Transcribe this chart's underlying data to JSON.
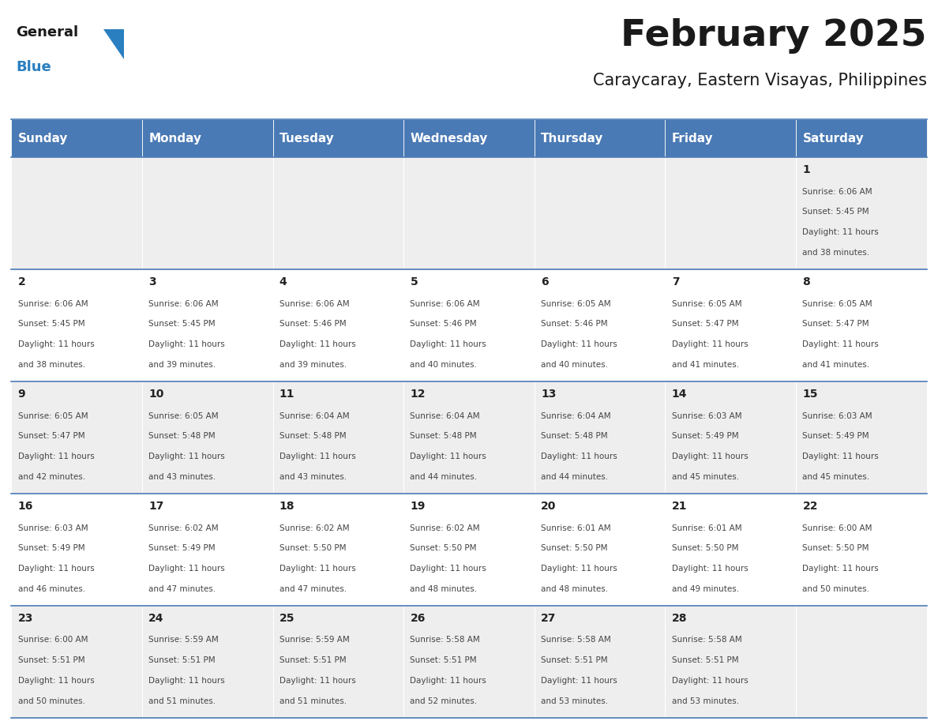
{
  "title": "February 2025",
  "subtitle": "Caraycaray, Eastern Visayas, Philippines",
  "header_bg": "#4a7ab5",
  "header_text": "#ffffff",
  "day_headers": [
    "Sunday",
    "Monday",
    "Tuesday",
    "Wednesday",
    "Thursday",
    "Friday",
    "Saturday"
  ],
  "title_color": "#1a1a1a",
  "subtitle_color": "#1a1a1a",
  "cell_text_color": "#444444",
  "day_num_color": "#222222",
  "border_color": "#4a7ab5",
  "logo_general_color": "#1a1a1a",
  "logo_blue_color": "#2a7fc0",
  "logo_triangle_color": "#2a7fc0",
  "days": [
    {
      "day": 1,
      "col": 6,
      "row": 0,
      "sunrise": "6:06 AM",
      "sunset": "5:45 PM",
      "daylight_h": "11",
      "daylight_m": "38"
    },
    {
      "day": 2,
      "col": 0,
      "row": 1,
      "sunrise": "6:06 AM",
      "sunset": "5:45 PM",
      "daylight_h": "11",
      "daylight_m": "38"
    },
    {
      "day": 3,
      "col": 1,
      "row": 1,
      "sunrise": "6:06 AM",
      "sunset": "5:45 PM",
      "daylight_h": "11",
      "daylight_m": "39"
    },
    {
      "day": 4,
      "col": 2,
      "row": 1,
      "sunrise": "6:06 AM",
      "sunset": "5:46 PM",
      "daylight_h": "11",
      "daylight_m": "39"
    },
    {
      "day": 5,
      "col": 3,
      "row": 1,
      "sunrise": "6:06 AM",
      "sunset": "5:46 PM",
      "daylight_h": "11",
      "daylight_m": "40"
    },
    {
      "day": 6,
      "col": 4,
      "row": 1,
      "sunrise": "6:05 AM",
      "sunset": "5:46 PM",
      "daylight_h": "11",
      "daylight_m": "40"
    },
    {
      "day": 7,
      "col": 5,
      "row": 1,
      "sunrise": "6:05 AM",
      "sunset": "5:47 PM",
      "daylight_h": "11",
      "daylight_m": "41"
    },
    {
      "day": 8,
      "col": 6,
      "row": 1,
      "sunrise": "6:05 AM",
      "sunset": "5:47 PM",
      "daylight_h": "11",
      "daylight_m": "41"
    },
    {
      "day": 9,
      "col": 0,
      "row": 2,
      "sunrise": "6:05 AM",
      "sunset": "5:47 PM",
      "daylight_h": "11",
      "daylight_m": "42"
    },
    {
      "day": 10,
      "col": 1,
      "row": 2,
      "sunrise": "6:05 AM",
      "sunset": "5:48 PM",
      "daylight_h": "11",
      "daylight_m": "43"
    },
    {
      "day": 11,
      "col": 2,
      "row": 2,
      "sunrise": "6:04 AM",
      "sunset": "5:48 PM",
      "daylight_h": "11",
      "daylight_m": "43"
    },
    {
      "day": 12,
      "col": 3,
      "row": 2,
      "sunrise": "6:04 AM",
      "sunset": "5:48 PM",
      "daylight_h": "11",
      "daylight_m": "44"
    },
    {
      "day": 13,
      "col": 4,
      "row": 2,
      "sunrise": "6:04 AM",
      "sunset": "5:48 PM",
      "daylight_h": "11",
      "daylight_m": "44"
    },
    {
      "day": 14,
      "col": 5,
      "row": 2,
      "sunrise": "6:03 AM",
      "sunset": "5:49 PM",
      "daylight_h": "11",
      "daylight_m": "45"
    },
    {
      "day": 15,
      "col": 6,
      "row": 2,
      "sunrise": "6:03 AM",
      "sunset": "5:49 PM",
      "daylight_h": "11",
      "daylight_m": "45"
    },
    {
      "day": 16,
      "col": 0,
      "row": 3,
      "sunrise": "6:03 AM",
      "sunset": "5:49 PM",
      "daylight_h": "11",
      "daylight_m": "46"
    },
    {
      "day": 17,
      "col": 1,
      "row": 3,
      "sunrise": "6:02 AM",
      "sunset": "5:49 PM",
      "daylight_h": "11",
      "daylight_m": "47"
    },
    {
      "day": 18,
      "col": 2,
      "row": 3,
      "sunrise": "6:02 AM",
      "sunset": "5:50 PM",
      "daylight_h": "11",
      "daylight_m": "47"
    },
    {
      "day": 19,
      "col": 3,
      "row": 3,
      "sunrise": "6:02 AM",
      "sunset": "5:50 PM",
      "daylight_h": "11",
      "daylight_m": "48"
    },
    {
      "day": 20,
      "col": 4,
      "row": 3,
      "sunrise": "6:01 AM",
      "sunset": "5:50 PM",
      "daylight_h": "11",
      "daylight_m": "48"
    },
    {
      "day": 21,
      "col": 5,
      "row": 3,
      "sunrise": "6:01 AM",
      "sunset": "5:50 PM",
      "daylight_h": "11",
      "daylight_m": "49"
    },
    {
      "day": 22,
      "col": 6,
      "row": 3,
      "sunrise": "6:00 AM",
      "sunset": "5:50 PM",
      "daylight_h": "11",
      "daylight_m": "50"
    },
    {
      "day": 23,
      "col": 0,
      "row": 4,
      "sunrise": "6:00 AM",
      "sunset": "5:51 PM",
      "daylight_h": "11",
      "daylight_m": "50"
    },
    {
      "day": 24,
      "col": 1,
      "row": 4,
      "sunrise": "5:59 AM",
      "sunset": "5:51 PM",
      "daylight_h": "11",
      "daylight_m": "51"
    },
    {
      "day": 25,
      "col": 2,
      "row": 4,
      "sunrise": "5:59 AM",
      "sunset": "5:51 PM",
      "daylight_h": "11",
      "daylight_m": "51"
    },
    {
      "day": 26,
      "col": 3,
      "row": 4,
      "sunrise": "5:58 AM",
      "sunset": "5:51 PM",
      "daylight_h": "11",
      "daylight_m": "52"
    },
    {
      "day": 27,
      "col": 4,
      "row": 4,
      "sunrise": "5:58 AM",
      "sunset": "5:51 PM",
      "daylight_h": "11",
      "daylight_m": "53"
    },
    {
      "day": 28,
      "col": 5,
      "row": 4,
      "sunrise": "5:58 AM",
      "sunset": "5:51 PM",
      "daylight_h": "11",
      "daylight_m": "53"
    }
  ]
}
